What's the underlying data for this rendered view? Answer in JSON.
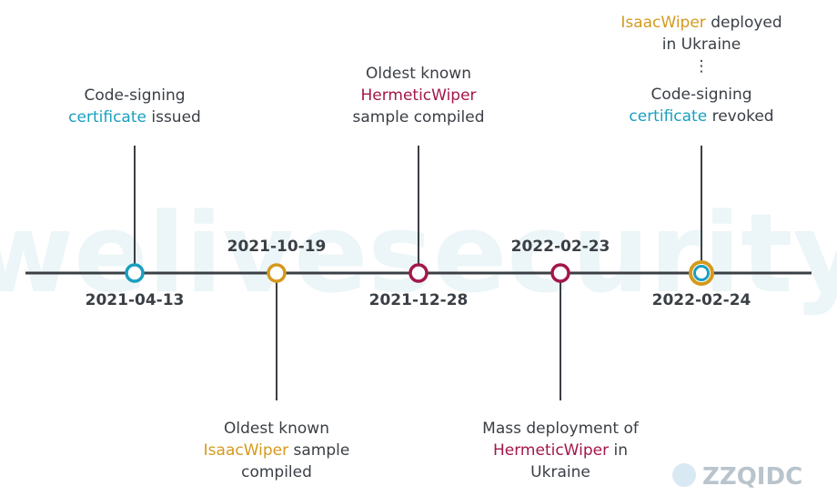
{
  "watermark": "welivesecurity",
  "logo": "ZZQIDC",
  "events": [
    {
      "date": "2021-04-13",
      "lines": [
        [
          "Code-signing"
        ],
        [
          "certificate",
          "issued"
        ]
      ]
    },
    {
      "date": "2021-10-19",
      "lines": [
        [
          "Oldest known"
        ],
        [
          "IsaacWiper",
          "sample"
        ],
        [
          "compiled"
        ]
      ]
    },
    {
      "date": "2021-12-28",
      "lines": [
        [
          "Oldest known"
        ],
        [
          "HermeticWiper"
        ],
        [
          "sample compiled"
        ]
      ]
    },
    {
      "date": "2022-02-23",
      "lines": [
        [
          "Mass deployment of"
        ],
        [
          "HermeticWiper",
          "in"
        ],
        [
          "Ukraine"
        ]
      ]
    },
    {
      "date": "2022-02-24",
      "lines": [
        [
          "IsaacWiper",
          "deployed"
        ],
        [
          "in Ukraine"
        ],
        [
          "⋮"
        ],
        [
          "Code-signing"
        ],
        [
          "certificate",
          "revoked"
        ]
      ]
    }
  ]
}
